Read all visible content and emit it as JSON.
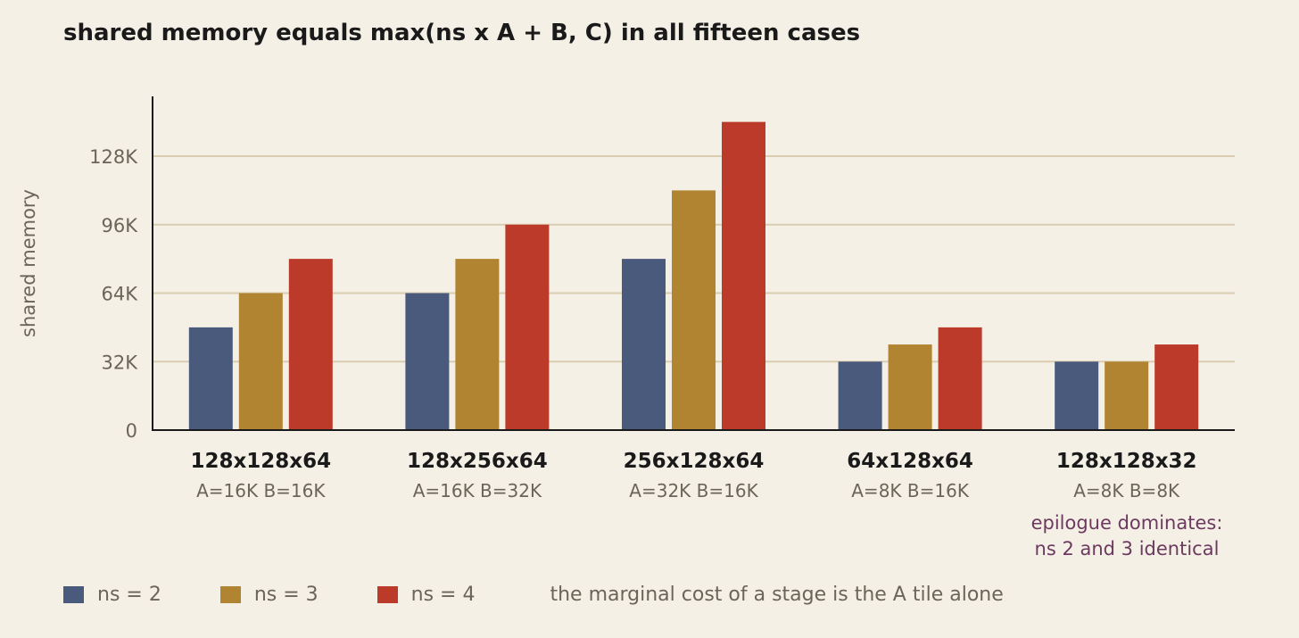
{
  "chart_data": {
    "type": "bar",
    "title": "shared memory equals max(ns x A + B, C) in all fifteen cases",
    "ylabel": "shared memory",
    "ylim": [
      0,
      144
    ],
    "yticks": [
      0,
      32,
      64,
      96,
      128
    ],
    "ytick_labels": [
      "0",
      "32K",
      "64K",
      "96K",
      "128K"
    ],
    "categories": [
      "128x128x64",
      "128x256x64",
      "256x128x64",
      "64x128x64",
      "128x128x32"
    ],
    "sublabels": [
      "A=16K B=16K",
      "A=16K B=32K",
      "A=32K B=16K",
      "A=8K B=16K",
      "A=8K B=8K"
    ],
    "series": [
      {
        "name": "ns = 2",
        "color": "#4a5a7c",
        "values": [
          48,
          64,
          80,
          32,
          32
        ]
      },
      {
        "name": "ns = 3",
        "color": "#b08430",
        "values": [
          64,
          80,
          112,
          40,
          32
        ]
      },
      {
        "name": "ns = 4",
        "color": "#bb3a29",
        "values": [
          80,
          96,
          144,
          48,
          40
        ]
      }
    ],
    "annotation_lines": [
      "epilogue dominates:",
      "ns 2 and 3 identical"
    ],
    "legend_note": "the marginal cost of a stage is the A tile alone",
    "grid": true,
    "legend_position": "bottom"
  }
}
